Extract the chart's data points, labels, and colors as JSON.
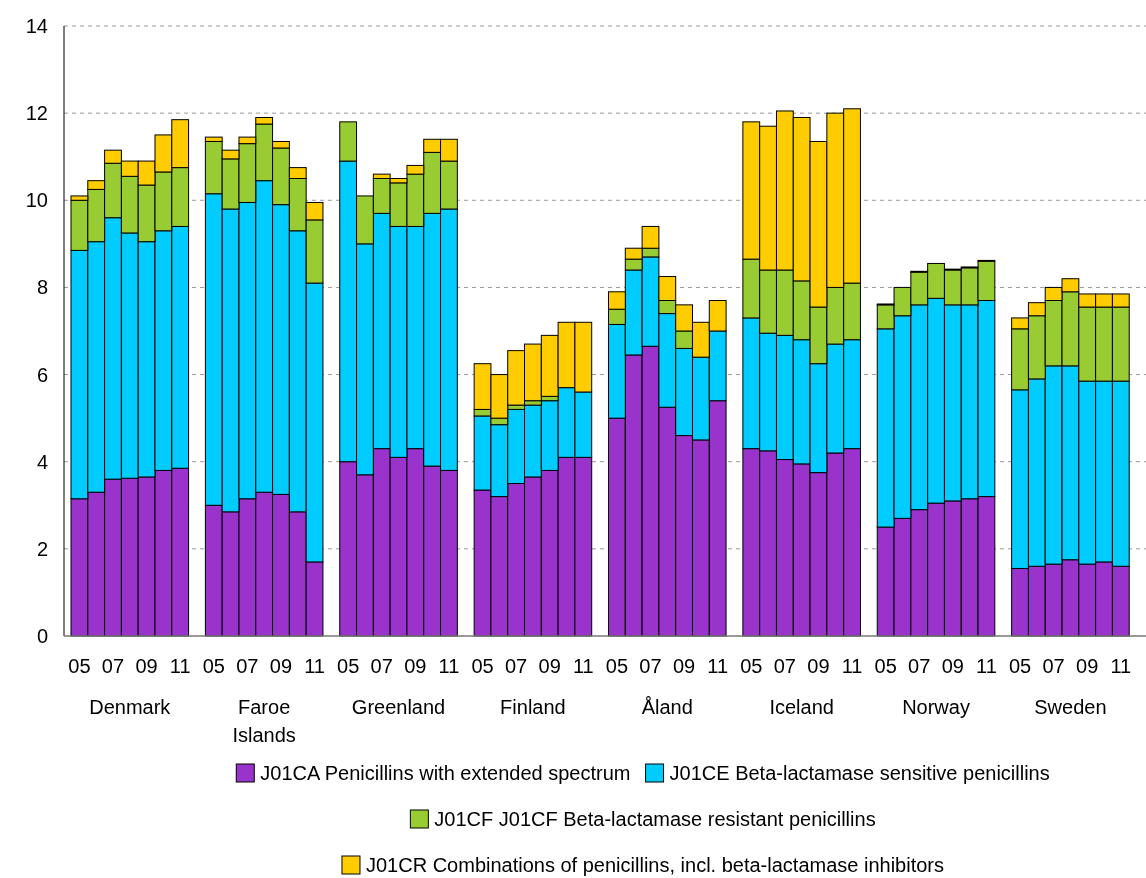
{
  "chart_data": {
    "type": "bar",
    "stacked": true,
    "categories": [
      "05",
      null,
      "07",
      null,
      "09",
      null,
      "11",
      null,
      "05",
      null,
      "07",
      null,
      "09",
      null,
      "11",
      null,
      "05",
      null,
      "07",
      null,
      "09",
      null,
      "11",
      null,
      "05",
      null,
      "07",
      null,
      "09",
      null,
      "11",
      null,
      "05",
      null,
      "07",
      null,
      "09",
      null,
      "11",
      null,
      "05",
      null,
      "07",
      null,
      "09",
      null,
      "11",
      null,
      "05",
      null,
      "07",
      null,
      "09",
      null,
      "11",
      null,
      "05",
      null,
      "07",
      null,
      "09",
      null,
      "11"
    ],
    "series": [
      {
        "name": "J01CA Penicillins with extended spectrum",
        "color": "#9933cc",
        "values": [
          3.15,
          3.3,
          3.6,
          3.62,
          3.65,
          3.8,
          3.85,
          null,
          3.0,
          2.85,
          3.15,
          3.3,
          3.25,
          2.85,
          1.7,
          null,
          4.0,
          3.7,
          4.3,
          4.1,
          4.3,
          3.9,
          3.8,
          null,
          3.35,
          3.2,
          3.5,
          3.65,
          3.8,
          4.1,
          4.1,
          null,
          5.0,
          6.45,
          6.65,
          5.25,
          4.6,
          4.5,
          5.4,
          null,
          4.3,
          4.25,
          4.05,
          3.95,
          3.75,
          4.2,
          4.3,
          null,
          2.5,
          2.7,
          2.9,
          3.05,
          3.1,
          3.15,
          3.2,
          null,
          1.55,
          1.6,
          1.65,
          1.75,
          1.65,
          1.7,
          1.6
        ]
      },
      {
        "name": "J01CE Beta-lactamase sensitive penicillins",
        "color": "#00ccff",
        "values": [
          5.7,
          5.75,
          6.0,
          5.63,
          5.4,
          5.5,
          5.55,
          null,
          7.15,
          6.95,
          6.8,
          7.15,
          6.65,
          6.45,
          6.4,
          null,
          6.9,
          5.3,
          5.4,
          5.3,
          5.1,
          5.8,
          6.0,
          null,
          1.7,
          1.65,
          1.7,
          1.65,
          1.6,
          1.6,
          1.5,
          null,
          2.15,
          1.95,
          2.05,
          2.15,
          2.0,
          1.9,
          1.6,
          null,
          3.0,
          2.7,
          2.85,
          2.85,
          2.5,
          2.5,
          2.5,
          null,
          4.55,
          4.65,
          4.7,
          4.7,
          4.5,
          4.45,
          4.5,
          null,
          4.1,
          4.3,
          4.55,
          4.45,
          4.2,
          4.15,
          4.25
        ]
      },
      {
        "name": "J01CF J01CF Beta-lactamase resistant penicillins",
        "color": "#99cc33",
        "values": [
          1.15,
          1.2,
          1.25,
          1.3,
          1.3,
          1.35,
          1.35,
          null,
          1.2,
          1.15,
          1.35,
          1.3,
          1.3,
          1.2,
          1.45,
          null,
          0.9,
          1.1,
          0.8,
          1.0,
          1.2,
          1.4,
          1.1,
          null,
          0.15,
          0.15,
          0.1,
          0.1,
          0.1,
          0,
          0,
          null,
          0.35,
          0.25,
          0.2,
          0.3,
          0.4,
          0,
          0,
          null,
          1.35,
          1.45,
          1.5,
          1.35,
          1.3,
          1.3,
          1.3,
          null,
          0.55,
          0.65,
          0.75,
          0.8,
          0.8,
          0.85,
          0.9,
          null,
          1.4,
          1.45,
          1.5,
          1.7,
          1.7,
          1.7,
          1.7
        ]
      },
      {
        "name": "J01CR Combinations of penicillins, incl. beta-lactamase inhibitors",
        "color": "#ffcc00",
        "values": [
          0.1,
          0.2,
          0.3,
          0.35,
          0.55,
          0.85,
          1.1,
          null,
          0.1,
          0.2,
          0.15,
          0.15,
          0.15,
          0.25,
          0.4,
          null,
          0,
          0,
          0.1,
          0.1,
          0.2,
          0.3,
          0.5,
          null,
          1.05,
          1.0,
          1.25,
          1.3,
          1.4,
          1.5,
          1.6,
          null,
          0.4,
          0.25,
          0.5,
          0.55,
          0.6,
          0.8,
          0.7,
          null,
          3.15,
          3.3,
          3.65,
          3.75,
          3.8,
          4.0,
          4.0,
          null,
          0.02,
          null,
          0.02,
          null,
          0.02,
          0.02,
          0.02,
          null,
          0.25,
          0.3,
          0.3,
          0.3,
          0.3,
          0.3,
          0.3
        ]
      }
    ],
    "annotations": [
      "Denmark",
      "Faroe Islands",
      "Greenland",
      "Finland",
      "Åland",
      "Iceland",
      "Norway",
      "Sweden"
    ],
    "ylim": [
      0,
      14
    ],
    "yticks": [
      0,
      2,
      4,
      6,
      8,
      10,
      12,
      14
    ],
    "grid": "y",
    "legend": "bottom"
  }
}
